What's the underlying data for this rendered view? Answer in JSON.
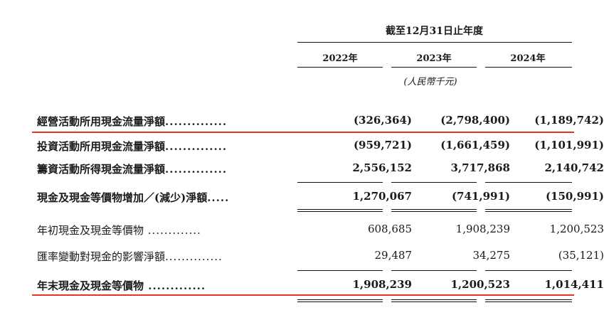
{
  "header": {
    "period_title": "截至12月31日止年度",
    "years": [
      "2022年",
      "2023年",
      "2024年"
    ],
    "unit": "(人民幣千元)"
  },
  "rows": [
    {
      "label": "經營活動所用現金流量淨額",
      "leader": "..............",
      "values": [
        "(326,364)",
        "(2,798,400)",
        "(1,189,742)"
      ]
    },
    {
      "label": "投資活動所用現金流量淨額",
      "leader": "..............",
      "values": [
        "(959,721)",
        "(1,661,459)",
        "(1,101,991)"
      ]
    },
    {
      "label": "籌資活動所得現金流量淨額",
      "leader": "..............",
      "values": [
        "2,556,152",
        "3,717,868",
        "2,140,742"
      ]
    },
    {
      "label": "現金及現金等價物增加／(減少)淨額",
      "leader": ".....",
      "values": [
        "1,270,067",
        "(741,991)",
        "(150,991)"
      ]
    },
    {
      "label": "年初現金及現金等價物",
      "leader": " .............",
      "values": [
        "608,685",
        "1,908,239",
        "1,200,523"
      ]
    },
    {
      "label": "匯率變動對現金的影響淨額",
      "leader": "..............",
      "values": [
        "29,487",
        "34,275",
        "(35,121)"
      ]
    },
    {
      "label": "年末現金及現金等價物",
      "leader": " .............",
      "values": [
        "1,908,239",
        "1,200,523",
        "1,014,411"
      ]
    }
  ],
  "colors": {
    "highlight_line": "#e8361d",
    "rule": "#111111"
  }
}
